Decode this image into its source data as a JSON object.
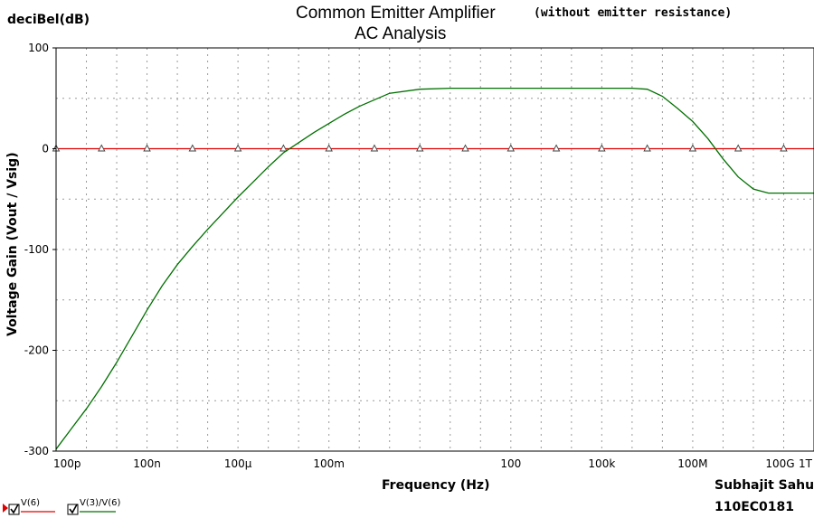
{
  "chart_data": {
    "type": "line",
    "title": "Common Emitter Amplifier",
    "title_note": "(without emitter resistance)",
    "subtitle": "AC Analysis",
    "y_unit_label": "deciBel(dB)",
    "xlabel": "Frequency (Hz)",
    "ylabel": "Voltage Gain (Vout / Vsig)",
    "author": "Subhajit Sahu",
    "roll_no": "110EC0181",
    "x_scale": "log",
    "xlim": [
      1e-13,
      1000000000000.0
    ],
    "ylim": [
      -300,
      100
    ],
    "grid": true,
    "legend_position": "bottom-left",
    "x_ticks": [
      {
        "value": 1e-13,
        "label": "100p"
      },
      {
        "value": 1e-10,
        "label": "100n"
      },
      {
        "value": 1e-07,
        "label": "100µ"
      },
      {
        "value": 0.0001,
        "label": "100m"
      },
      {
        "value": 100,
        "label": "100"
      },
      {
        "value": 100000.0,
        "label": "100k"
      },
      {
        "value": 100000000.0,
        "label": "100M"
      },
      {
        "value": 100000000000.0,
        "label": "100G"
      },
      {
        "value": 1000000000000.0,
        "label": "1T"
      }
    ],
    "y_ticks": [
      {
        "value": 100,
        "label": "100"
      },
      {
        "value": 0,
        "label": "0"
      },
      {
        "value": -100,
        "label": "-100"
      },
      {
        "value": -200,
        "label": "-200"
      },
      {
        "value": -300,
        "label": "-300"
      }
    ],
    "series": [
      {
        "name": "V(6)",
        "color": "#e00000",
        "marker": "triangle",
        "x": [
          1e-13,
          1000000000000.0
        ],
        "y": [
          0,
          0
        ],
        "marker_x": [
          1e-13,
          3.16e-12,
          1e-10,
          3.16e-09,
          1e-07,
          3.16e-06,
          0.0001,
          0.00316,
          0.1,
          3.16,
          100,
          3160,
          100000.0,
          3160000.0,
          100000000.0,
          3160000000.0,
          100000000000.0
        ]
      },
      {
        "name": "V(3)/V(6)",
        "color": "#007000",
        "x": [
          1e-13,
          3.16e-13,
          1e-12,
          3.16e-12,
          1e-11,
          3.16e-11,
          1e-10,
          3.16e-10,
          1e-09,
          3.16e-09,
          1e-08,
          3.16e-08,
          1e-07,
          3.16e-07,
          1e-06,
          3.16e-06,
          1e-05,
          3.16e-05,
          0.0001,
          0.000316,
          0.001,
          0.01,
          0.1,
          1,
          10,
          100,
          1000.0,
          10000.0,
          100000.0,
          1000000.0,
          3160000.0,
          10000000.0,
          31600000.0,
          100000000.0,
          316000000.0,
          1000000000.0,
          3160000000.0,
          10000000000.0,
          31600000000.0,
          100000000000.0,
          1000000000000.0
        ],
        "y": [
          -298,
          -278,
          -258,
          -236,
          -212,
          -186,
          -160,
          -136,
          -115,
          -97,
          -80,
          -64,
          -48,
          -33,
          -18,
          -4,
          6,
          16,
          25,
          34,
          42,
          55,
          59,
          60,
          60,
          60,
          60,
          60,
          60,
          60,
          59,
          52,
          40,
          27,
          10,
          -10,
          -28,
          -40,
          -44,
          -44,
          -44
        ]
      }
    ]
  }
}
